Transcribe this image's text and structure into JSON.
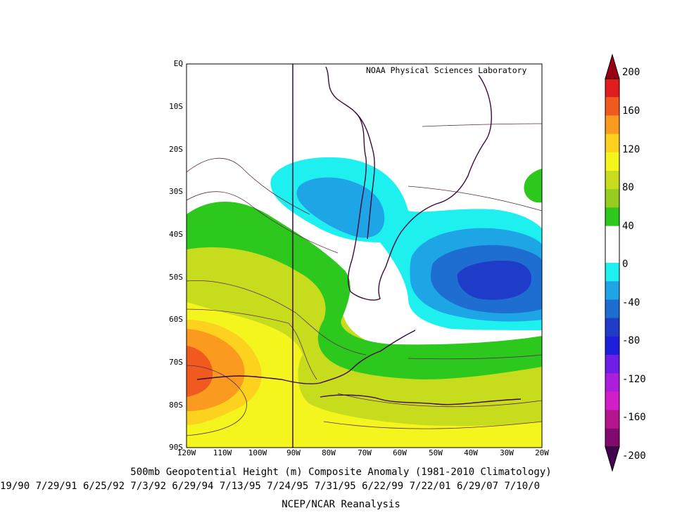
{
  "map": {
    "credit": "NOAA Physical Sciences Laboratory",
    "lat_labels": [
      "EQ",
      "10S",
      "20S",
      "30S",
      "40S",
      "50S",
      "60S",
      "70S",
      "80S",
      "90S"
    ],
    "lon_labels": [
      "120W",
      "110W",
      "100W",
      "90W",
      "80W",
      "70W",
      "60W",
      "50W",
      "40W",
      "30W",
      "20W"
    ],
    "region": {
      "lon_range": [
        -120,
        -20
      ],
      "lat_range": [
        -90,
        0
      ]
    }
  },
  "colorbar": {
    "labels": [
      "200",
      "160",
      "120",
      "80",
      "40",
      "0",
      "-40",
      "-80",
      "-120",
      "-160",
      "-200"
    ],
    "units": "m",
    "colors": [
      "#9a0014",
      "#e01e1e",
      "#f05a1e",
      "#fa9a1e",
      "#fcd21e",
      "#f5f51e",
      "#c8dc1e",
      "#96cd1e",
      "#2dc81e",
      "#ffffff",
      "#ffffff",
      "#1ef0f0",
      "#1ea5e6",
      "#1e6ed2",
      "#1e3cc8",
      "#1e1edc",
      "#6e1ee6",
      "#aa1edc",
      "#d21ec8",
      "#b4148c",
      "#820a6e",
      "#460050"
    ]
  },
  "captions": {
    "title": "500mb Geopotential Height (m) Composite Anomaly (1981-2010 Climatology)",
    "dates": "19/90 7/29/91 6/25/92 7/3/92 6/29/94 7/13/95 7/24/95 7/31/95 6/22/99 7/22/01 6/29/07 7/10/0",
    "source": "NCEP/NCAR Reanalysis"
  }
}
